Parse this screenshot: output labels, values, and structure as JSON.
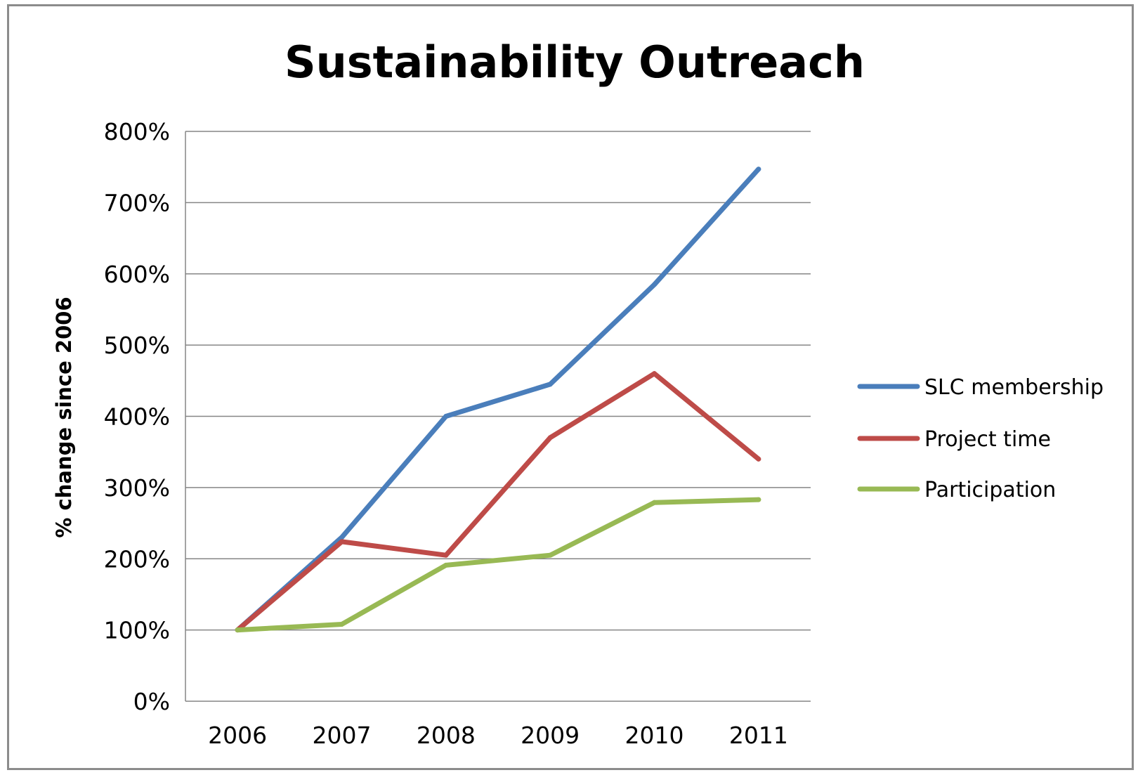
{
  "chart_data": {
    "type": "line",
    "title": "Sustainability Outreach",
    "xlabel": "",
    "ylabel": "% change since 2006",
    "categories": [
      "2006",
      "2007",
      "2008",
      "2009",
      "2010",
      "2011"
    ],
    "y_ticks": [
      "0%",
      "100%",
      "200%",
      "300%",
      "400%",
      "500%",
      "600%",
      "700%",
      "800%"
    ],
    "ylim": [
      0,
      800
    ],
    "y_unit": "%",
    "grid": "horizontal",
    "legend_position": "right",
    "series": [
      {
        "name": "SLC membership",
        "color": "#4a7ebb",
        "values": [
          100,
          230,
          400,
          445,
          585,
          747
        ]
      },
      {
        "name": "Project time",
        "color": "#be4b48",
        "values": [
          100,
          224,
          205,
          370,
          460,
          340
        ]
      },
      {
        "name": "Participation",
        "color": "#98b954",
        "values": [
          100,
          108,
          191,
          205,
          279,
          283
        ]
      }
    ]
  }
}
